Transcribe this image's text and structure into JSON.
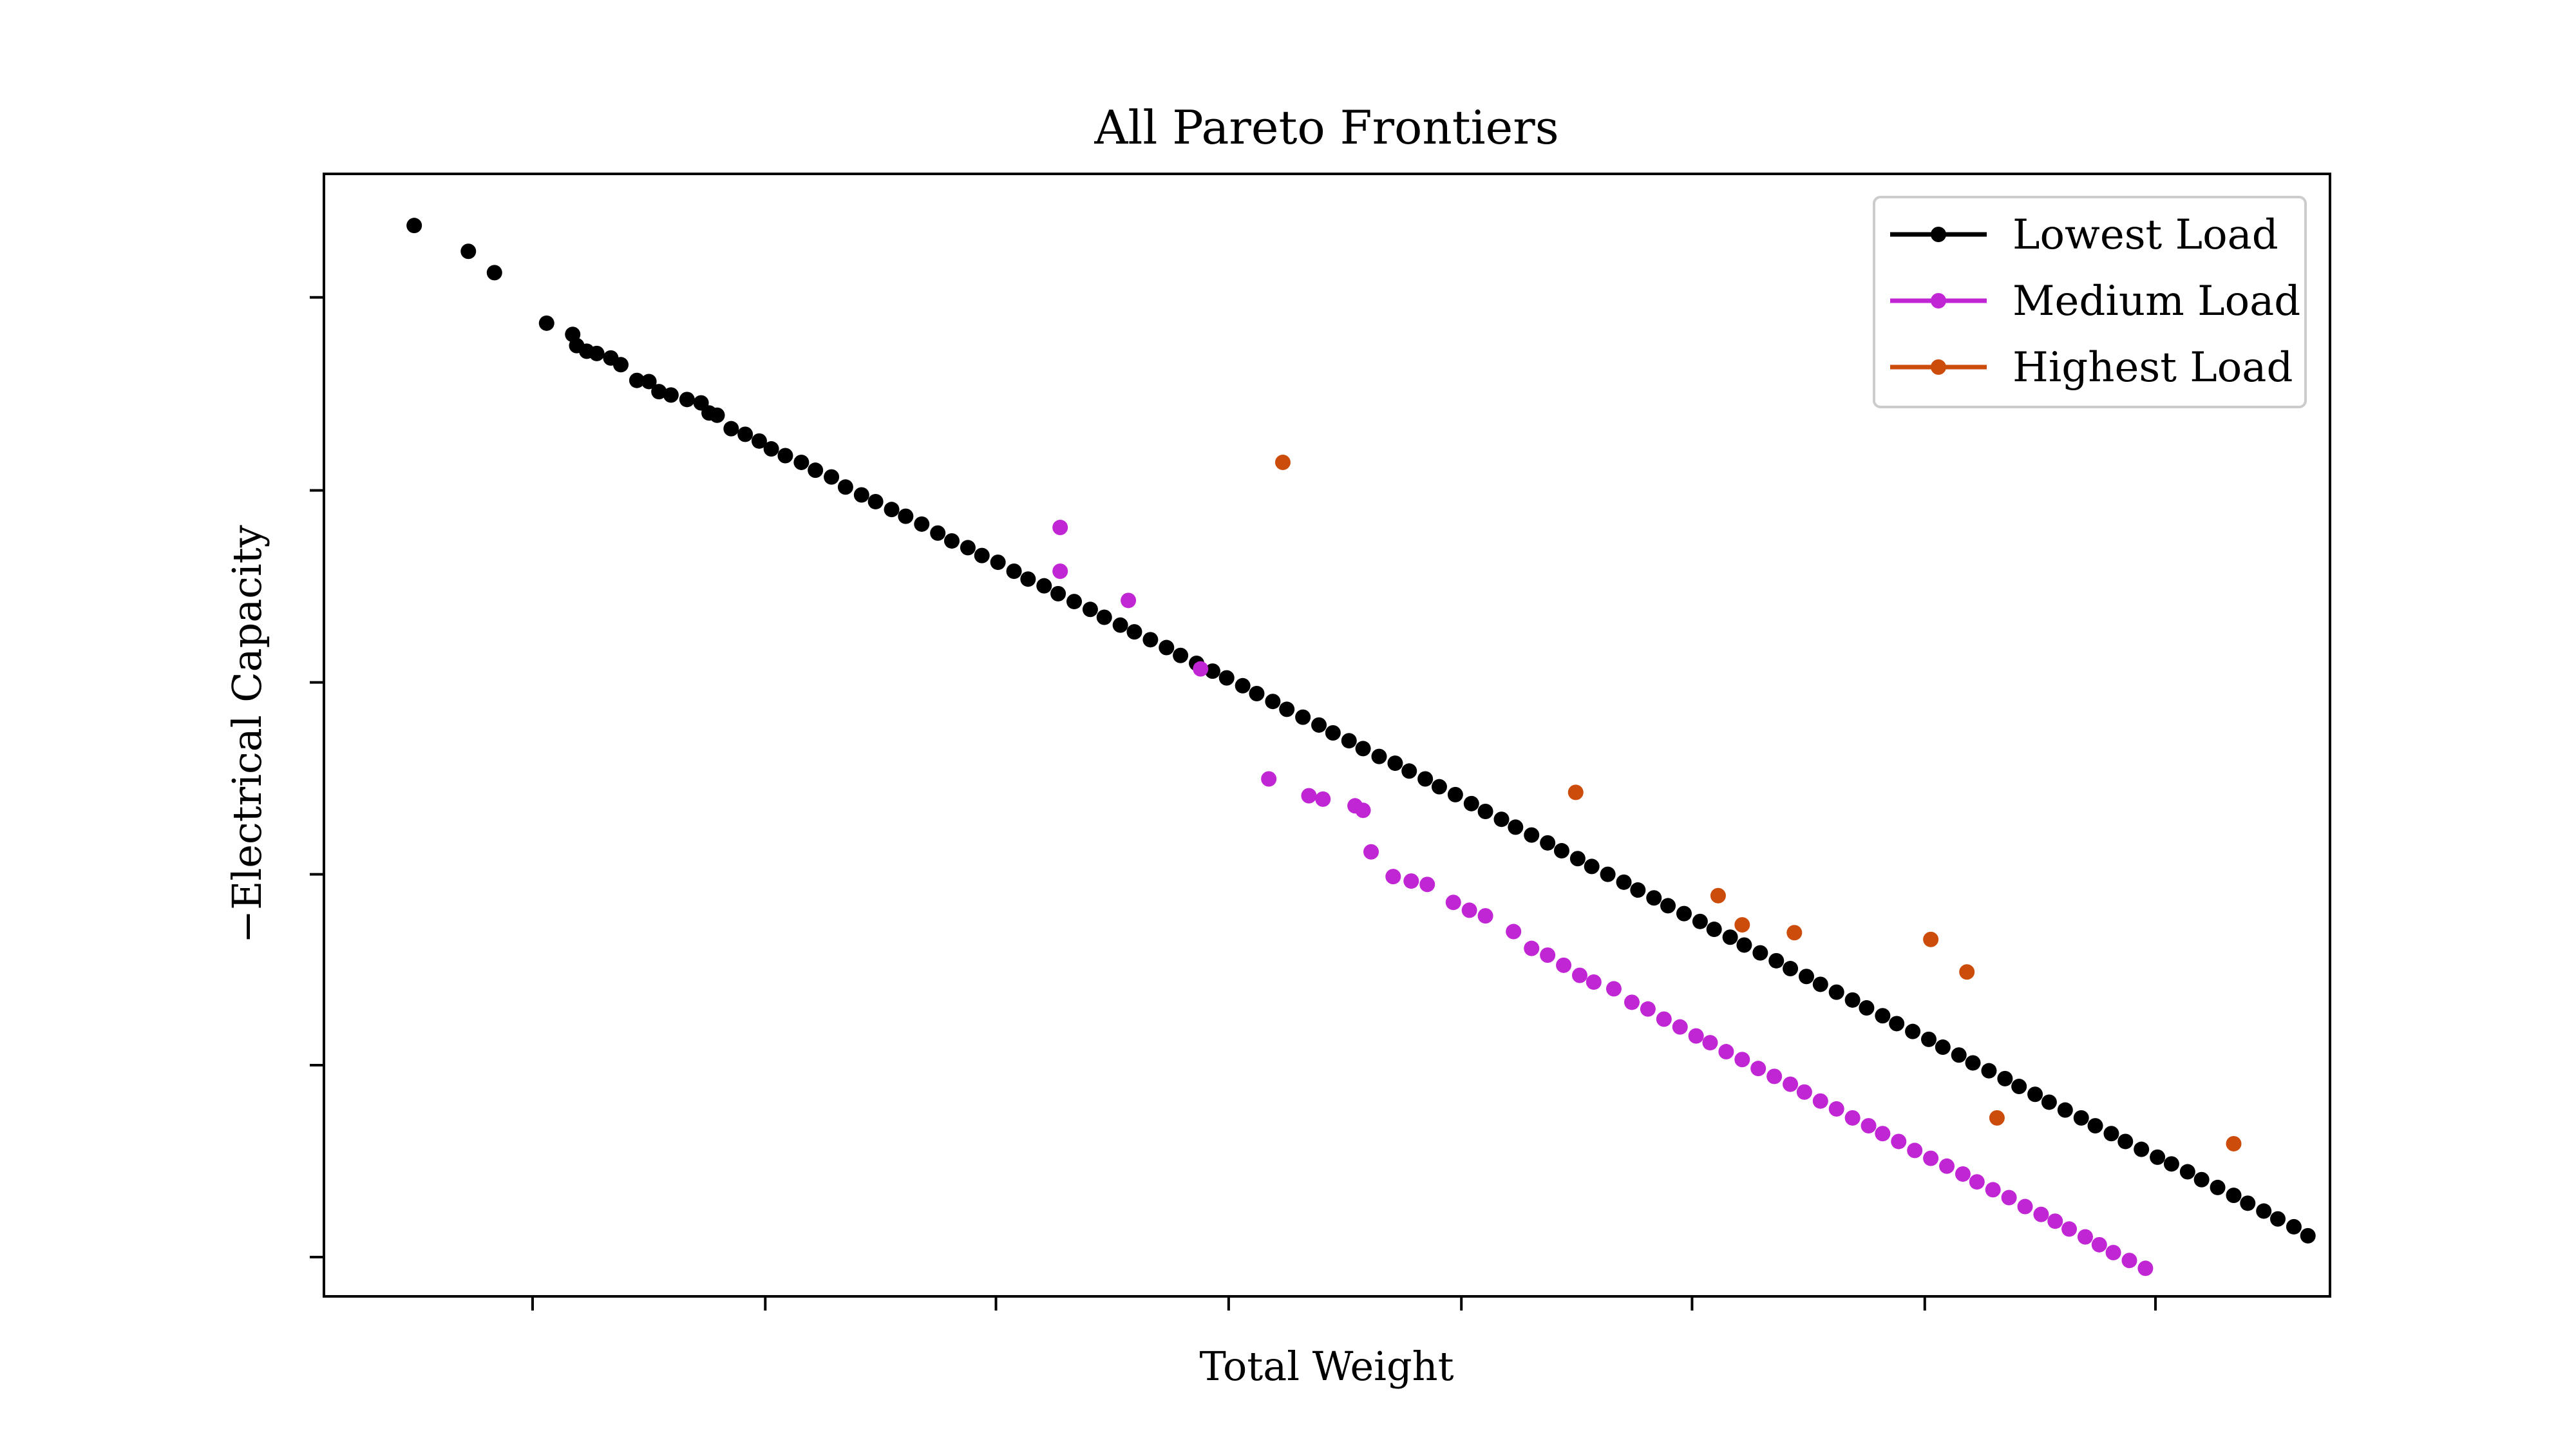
{
  "chart_data": {
    "type": "scatter",
    "title": "All Pareto Frontiers",
    "xlabel": "Total Weight",
    "ylabel": "−Electrical Capacity",
    "xlim": [
      0,
      100
    ],
    "ylim": [
      0,
      100
    ],
    "x_tick_labels_shown": false,
    "y_tick_labels_shown": false,
    "grid": false,
    "legend_position": "top-right",
    "series": [
      {
        "name": "Lowest Load",
        "color": "#000000",
        "points": [
          [
            4.5,
            95.4
          ],
          [
            7.2,
            93.1
          ],
          [
            8.5,
            91.2
          ],
          [
            11.1,
            86.7
          ],
          [
            12.4,
            85.7
          ],
          [
            12.6,
            84.7
          ],
          [
            13.1,
            84.2
          ],
          [
            13.6,
            84.0
          ],
          [
            14.3,
            83.6
          ],
          [
            14.8,
            83.0
          ],
          [
            15.6,
            81.6
          ],
          [
            16.2,
            81.5
          ],
          [
            16.7,
            80.6
          ],
          [
            17.3,
            80.3
          ],
          [
            18.1,
            79.9
          ],
          [
            18.8,
            79.6
          ],
          [
            19.2,
            78.7
          ],
          [
            19.6,
            78.5
          ],
          [
            20.3,
            77.3
          ],
          [
            21.0,
            76.8
          ],
          [
            21.7,
            76.2
          ],
          [
            22.3,
            75.5
          ],
          [
            23.0,
            74.9
          ],
          [
            23.8,
            74.3
          ],
          [
            24.5,
            73.6
          ],
          [
            25.3,
            73.0
          ],
          [
            26.0,
            72.1
          ],
          [
            26.8,
            71.4
          ],
          [
            27.5,
            70.8
          ],
          [
            28.3,
            70.1
          ],
          [
            29.0,
            69.5
          ],
          [
            29.8,
            68.8
          ],
          [
            30.6,
            68.0
          ],
          [
            31.3,
            67.3
          ],
          [
            32.1,
            66.7
          ],
          [
            32.8,
            66.0
          ],
          [
            33.6,
            65.4
          ],
          [
            34.4,
            64.6
          ],
          [
            35.1,
            63.9
          ],
          [
            35.9,
            63.3
          ],
          [
            36.6,
            62.6
          ],
          [
            37.4,
            61.9
          ],
          [
            38.2,
            61.2
          ],
          [
            38.9,
            60.5
          ],
          [
            39.7,
            59.8
          ],
          [
            40.4,
            59.2
          ],
          [
            41.2,
            58.5
          ],
          [
            42.0,
            57.8
          ],
          [
            42.7,
            57.1
          ],
          [
            43.5,
            56.4
          ],
          [
            44.3,
            55.7
          ],
          [
            45.0,
            55.1
          ],
          [
            45.8,
            54.4
          ],
          [
            46.5,
            53.7
          ],
          [
            47.3,
            53.0
          ],
          [
            48.0,
            52.3
          ],
          [
            48.8,
            51.6
          ],
          [
            49.6,
            50.9
          ],
          [
            50.3,
            50.2
          ],
          [
            51.1,
            49.5
          ],
          [
            51.8,
            48.8
          ],
          [
            52.6,
            48.1
          ],
          [
            53.4,
            47.5
          ],
          [
            54.1,
            46.8
          ],
          [
            54.9,
            46.1
          ],
          [
            55.6,
            45.4
          ],
          [
            56.4,
            44.7
          ],
          [
            57.2,
            43.9
          ],
          [
            57.9,
            43.2
          ],
          [
            58.7,
            42.5
          ],
          [
            59.4,
            41.8
          ],
          [
            60.2,
            41.1
          ],
          [
            61.0,
            40.4
          ],
          [
            61.7,
            39.7
          ],
          [
            62.5,
            39.0
          ],
          [
            63.2,
            38.3
          ],
          [
            64.0,
            37.6
          ],
          [
            64.8,
            36.9
          ],
          [
            65.5,
            36.2
          ],
          [
            66.3,
            35.5
          ],
          [
            67.0,
            34.8
          ],
          [
            67.8,
            34.1
          ],
          [
            68.6,
            33.4
          ],
          [
            69.3,
            32.7
          ],
          [
            70.1,
            32.0
          ],
          [
            70.8,
            31.3
          ],
          [
            71.6,
            30.6
          ],
          [
            72.4,
            29.9
          ],
          [
            73.1,
            29.2
          ],
          [
            73.9,
            28.5
          ],
          [
            74.6,
            27.8
          ],
          [
            75.4,
            27.1
          ],
          [
            76.2,
            26.4
          ],
          [
            76.9,
            25.7
          ],
          [
            77.7,
            25.0
          ],
          [
            78.4,
            24.3
          ],
          [
            79.2,
            23.6
          ],
          [
            80.0,
            22.9
          ],
          [
            80.7,
            22.2
          ],
          [
            81.5,
            21.5
          ],
          [
            82.2,
            20.8
          ],
          [
            83.0,
            20.1
          ],
          [
            83.8,
            19.4
          ],
          [
            84.5,
            18.7
          ],
          [
            85.3,
            18.0
          ],
          [
            86.0,
            17.3
          ],
          [
            86.8,
            16.6
          ],
          [
            87.6,
            15.9
          ],
          [
            88.3,
            15.2
          ],
          [
            89.1,
            14.5
          ],
          [
            89.8,
            13.8
          ],
          [
            90.6,
            13.1
          ],
          [
            91.4,
            12.4
          ],
          [
            92.1,
            11.8
          ],
          [
            92.9,
            11.1
          ],
          [
            93.6,
            10.4
          ],
          [
            94.4,
            9.7
          ],
          [
            95.2,
            9.0
          ],
          [
            95.9,
            8.3
          ],
          [
            96.7,
            7.6
          ],
          [
            97.4,
            6.9
          ],
          [
            98.2,
            6.2
          ],
          [
            98.9,
            5.4
          ]
        ]
      },
      {
        "name": "Medium Load",
        "color": "#c026d3",
        "points": [
          [
            36.7,
            68.5
          ],
          [
            36.7,
            64.6
          ],
          [
            40.1,
            62.0
          ],
          [
            43.7,
            55.9
          ],
          [
            47.1,
            46.1
          ],
          [
            49.1,
            44.6
          ],
          [
            49.8,
            44.3
          ],
          [
            51.4,
            43.7
          ],
          [
            51.8,
            43.3
          ],
          [
            52.2,
            39.6
          ],
          [
            53.3,
            37.4
          ],
          [
            54.2,
            37.0
          ],
          [
            55.0,
            36.7
          ],
          [
            56.3,
            35.1
          ],
          [
            57.1,
            34.4
          ],
          [
            57.9,
            33.9
          ],
          [
            59.3,
            32.5
          ],
          [
            60.2,
            31.0
          ],
          [
            61.0,
            30.4
          ],
          [
            61.8,
            29.5
          ],
          [
            62.6,
            28.6
          ],
          [
            63.3,
            28.0
          ],
          [
            64.3,
            27.4
          ],
          [
            65.2,
            26.2
          ],
          [
            66.0,
            25.6
          ],
          [
            66.8,
            24.7
          ],
          [
            67.6,
            24.0
          ],
          [
            68.4,
            23.2
          ],
          [
            69.1,
            22.6
          ],
          [
            69.9,
            21.8
          ],
          [
            70.7,
            21.1
          ],
          [
            71.5,
            20.3
          ],
          [
            72.3,
            19.6
          ],
          [
            73.1,
            18.9
          ],
          [
            73.8,
            18.2
          ],
          [
            74.6,
            17.4
          ],
          [
            75.4,
            16.7
          ],
          [
            76.2,
            15.9
          ],
          [
            77.0,
            15.2
          ],
          [
            77.7,
            14.5
          ],
          [
            78.5,
            13.8
          ],
          [
            79.3,
            13.0
          ],
          [
            80.1,
            12.3
          ],
          [
            80.9,
            11.6
          ],
          [
            81.7,
            10.9
          ],
          [
            82.4,
            10.2
          ],
          [
            83.2,
            9.5
          ],
          [
            84.0,
            8.8
          ],
          [
            84.8,
            8.0
          ],
          [
            85.6,
            7.3
          ],
          [
            86.3,
            6.7
          ],
          [
            87.0,
            6.0
          ],
          [
            87.8,
            5.3
          ],
          [
            88.5,
            4.6
          ],
          [
            89.2,
            3.9
          ],
          [
            90.0,
            3.2
          ],
          [
            90.8,
            2.5
          ]
        ]
      },
      {
        "name": "Highest Load",
        "color": "#cc4c0b",
        "points": [
          [
            47.8,
            74.3
          ],
          [
            62.4,
            44.9
          ],
          [
            69.5,
            35.7
          ],
          [
            70.7,
            33.1
          ],
          [
            73.3,
            32.4
          ],
          [
            80.1,
            31.8
          ],
          [
            81.9,
            28.9
          ],
          [
            83.4,
            15.9
          ],
          [
            95.2,
            13.6
          ]
        ]
      }
    ]
  }
}
